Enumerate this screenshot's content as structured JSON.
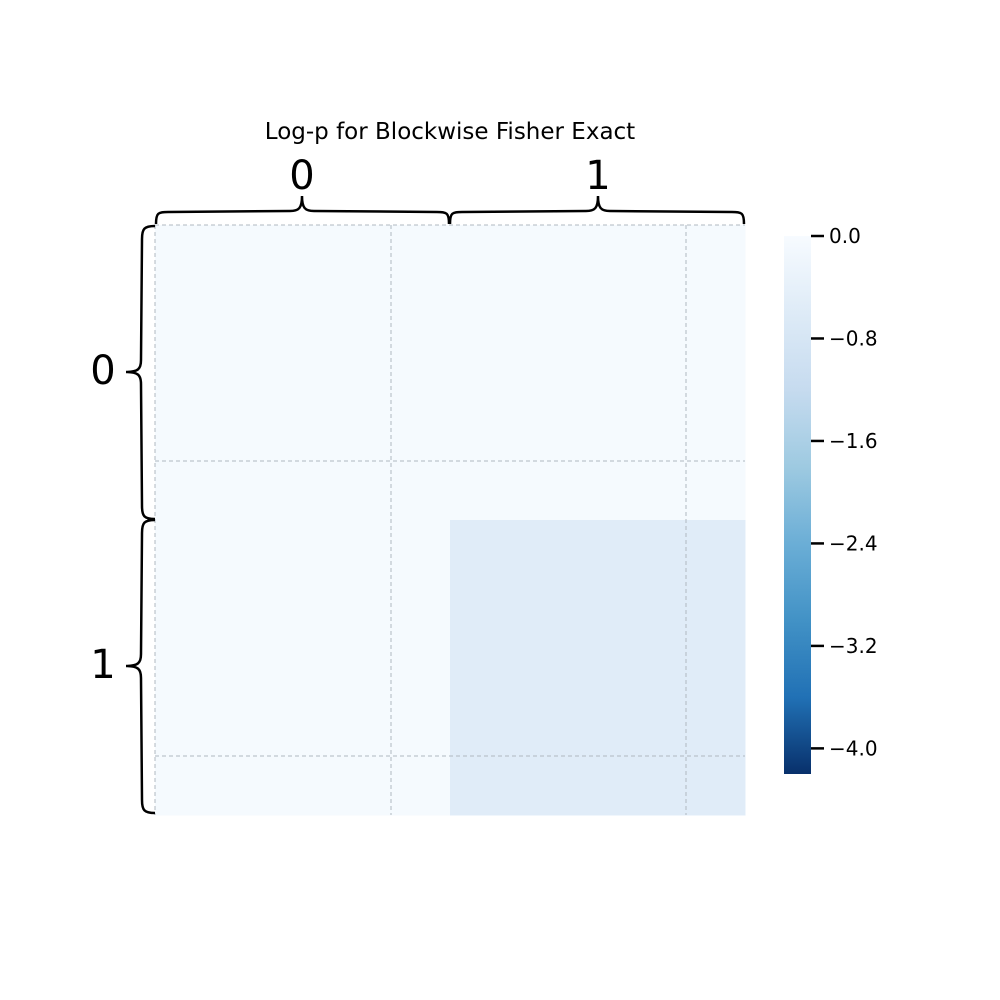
{
  "chart_data": {
    "type": "heatmap",
    "title": "Log-p for Blockwise Fisher Exact",
    "x_block_labels": [
      "0",
      "1"
    ],
    "y_block_labels": [
      "0",
      "1"
    ],
    "values": [
      [
        -0.05,
        -0.05
      ],
      [
        -0.05,
        -0.55
      ]
    ],
    "colormap": [
      "#08306b",
      "#2171b5",
      "#4292c6",
      "#6baed6",
      "#9ecae1",
      "#c6dbef",
      "#deebf7",
      "#f7fbff"
    ],
    "colorbar": {
      "vmin": -4.2,
      "vmax": 0.0,
      "ticks": [
        0.0,
        -0.8,
        -1.6,
        -2.4,
        -3.2,
        -4.0
      ],
      "tick_labels": [
        "0.0",
        "−0.8",
        "−1.6",
        "−2.4",
        "−3.2",
        "−4.0"
      ]
    },
    "grid": true,
    "grid_color": "#b0b8c0"
  }
}
